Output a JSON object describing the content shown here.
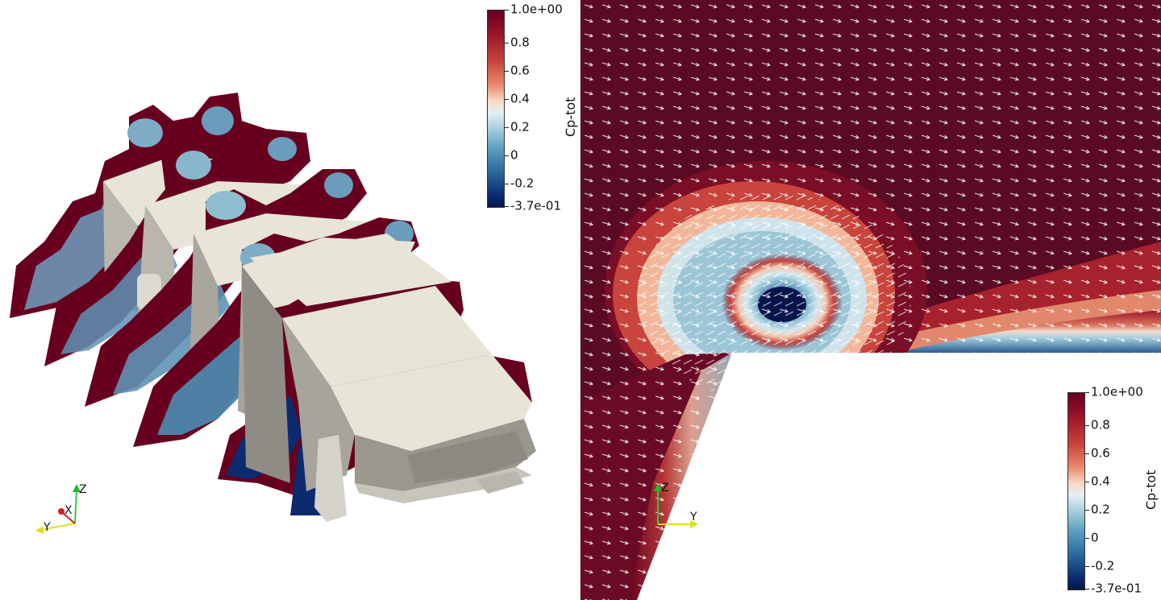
{
  "colorbar_left": {
    "title": "Cp-tot",
    "ticks": [
      "1.0e+00",
      "0.8",
      "0.6",
      "0.4",
      "0.2",
      "0",
      "-0.2",
      "-3.7e-01"
    ]
  },
  "colorbar_right": {
    "title": "Cp-tot",
    "ticks": [
      "1.0e+00",
      "0.8",
      "0.6",
      "0.4",
      "0.2",
      "0",
      "-0.2",
      "-3.7e-01"
    ]
  },
  "axes_left": {
    "z": "Z",
    "x": "X",
    "y": "Y"
  },
  "axes_right": {
    "z": "Z",
    "y": "Y"
  },
  "colors": {
    "high": "#67001f",
    "mid": "#f7f7f7",
    "low": "#05154a",
    "vehicle": "#e8e4d8",
    "vector": "#ffffff"
  }
}
